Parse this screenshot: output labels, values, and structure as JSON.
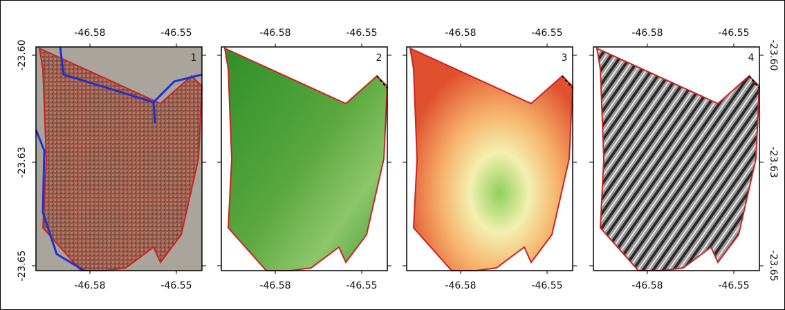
{
  "panels": [
    {
      "label": "1"
    },
    {
      "label": "2"
    },
    {
      "label": "3"
    },
    {
      "label": "4"
    }
  ],
  "longitude_ticks": [
    "-46.58",
    "-46.55"
  ],
  "latitude_ticks": [
    "-23.60",
    "-23.63",
    "-23.65"
  ]
}
